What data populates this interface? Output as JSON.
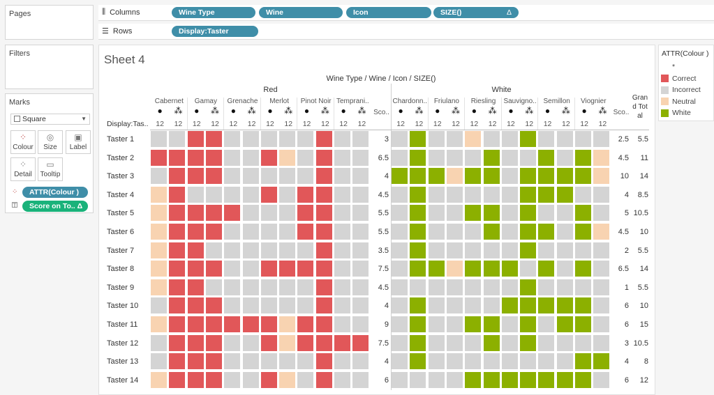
{
  "pages": {
    "title": "Pages"
  },
  "filters": {
    "title": "Filters"
  },
  "marks": {
    "title": "Marks",
    "mark_type": "Square",
    "buttons": [
      {
        "label": "Colour",
        "icon": "colour-icon"
      },
      {
        "label": "Size",
        "icon": "size-icon"
      },
      {
        "label": "Label",
        "icon": "label-icon"
      },
      {
        "label": "Detail",
        "icon": "detail-icon"
      },
      {
        "label": "Tooltip",
        "icon": "tooltip-icon"
      }
    ],
    "fields": [
      "ATTR(Colour )",
      "Score on To.. Δ"
    ]
  },
  "shelves": {
    "columns_label": "Columns",
    "rows_label": "Rows",
    "columns_pills": [
      "Wine Type",
      "Wine",
      "Icon",
      "SIZE()"
    ],
    "columns_delta": "Δ",
    "rows_pills": [
      "Display:Taster"
    ]
  },
  "sheet": {
    "title": "Sheet 4",
    "header_title": "Wine Type / Wine / Icon / SIZE()",
    "row_header": "Display:Tas..",
    "groups": [
      "Red",
      "White"
    ],
    "red_wines": [
      "Cabernet",
      "Gamay",
      "Grenache",
      "Merlot",
      "Pinot Noir",
      "Temprani.."
    ],
    "white_wines": [
      "Chardonn..",
      "Friulano",
      "Riesling",
      "Sauvigno..",
      "Semillon",
      "Viognier"
    ],
    "score_label": "Sco..",
    "grand_total_label": "Grand Total",
    "size_value": "12",
    "tasters": [
      "Taster 1",
      "Taster 2",
      "Taster 3",
      "Taster 4",
      "Taster 5",
      "Taster 6",
      "Taster 7",
      "Taster 8",
      "Taster 9",
      "Taster 10",
      "Taster 11",
      "Taster 12",
      "Taster 13",
      "Taster 14"
    ],
    "red_scores": [
      "3",
      "6.5",
      "4",
      "4.5",
      "5.5",
      "5.5",
      "3.5",
      "7.5",
      "4.5",
      "4",
      "9",
      "7.5",
      "4",
      "6"
    ],
    "white_scores": [
      "2.5",
      "4.5",
      "10",
      "4",
      "5",
      "4.5",
      "2",
      "6.5",
      "1",
      "6",
      "6",
      "3",
      "4",
      "6"
    ],
    "grand_totals": [
      "5.5",
      "11",
      "14",
      "8.5",
      "10.5",
      "10",
      "5.5",
      "14",
      "5.5",
      "10",
      "15",
      "10.5",
      "8",
      "12"
    ],
    "red_grid": [
      "IICCIIIIICII",
      "CCCCIICNICII",
      "ICCCIIIIICII",
      "NCIIIICICCII",
      "NCCCCIIICCII",
      "NCCCIIIICCII",
      "NCCIIIIIICII",
      "NCCCIICCCCII",
      "NCCIIIIIICII",
      "ICCCIIIIICII",
      "NCCCCCCNCCII",
      "ICCCIICNCCCC",
      "ICCCIIIIICII",
      "NCCCIICNICII"
    ],
    "white_grid": [
      "IWIINIIWIIII",
      "IWIIIWIIWIWN",
      "WWWNWWIWWWWN",
      "IWIIIIIWWWII",
      "IWIIWWIWIIWI",
      "IWIIIWIWWIWN",
      "IWIIIIIWIIII",
      "IWWNWWWIWIWI",
      "IIIIIIIWIIII",
      "IWIIIIWWWWWI",
      "IWIIWWIWIWWI",
      "IWIIIWIWIIII",
      "IWIIIIIIIIWW",
      "IIIIWWWWWWWI"
    ]
  },
  "legend": {
    "title": "ATTR(Colour )",
    "items": [
      {
        "label": "*",
        "color": "#ffffff"
      },
      {
        "label": "Correct",
        "color": "#e15759"
      },
      {
        "label": "Incorrect",
        "color": "#d4d4d4"
      },
      {
        "label": "Neutral",
        "color": "#f8d3b1"
      },
      {
        "label": "White",
        "color": "#8cb000"
      }
    ]
  },
  "colors": {
    "C": "#e15759",
    "I": "#d4d4d4",
    "N": "#f8d3b1",
    "W": "#8cb000"
  }
}
